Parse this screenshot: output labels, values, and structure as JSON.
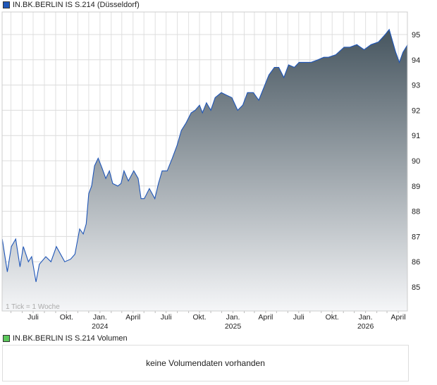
{
  "price_legend": {
    "label": "IN.BK.BERLIN IS S.214 (Düsseldorf)",
    "color": "#1f56b8"
  },
  "volume_legend": {
    "label": "IN.BK.BERLIN IS S.214 Volumen",
    "color": "#5cc85c"
  },
  "tick_note": "1 Tick = 1 Woche",
  "volume_message": "keine Volumendaten vorhanden",
  "chart_data": {
    "type": "area",
    "ylim": [
      84.1,
      95.9
    ],
    "y_ticks": [
      85,
      86,
      87,
      88,
      89,
      90,
      91,
      92,
      93,
      94,
      95
    ],
    "x_ticks": [
      {
        "date": "2023-07-01",
        "label": "Juli",
        "year": ""
      },
      {
        "date": "2023-10-01",
        "label": "Okt.",
        "year": ""
      },
      {
        "date": "2024-01-01",
        "label": "Jan.",
        "year": "2024"
      },
      {
        "date": "2024-04-01",
        "label": "April",
        "year": ""
      },
      {
        "date": "2024-07-01",
        "label": "Juli",
        "year": ""
      },
      {
        "date": "2024-10-01",
        "label": "Okt.",
        "year": ""
      },
      {
        "date": "2025-01-01",
        "label": "Jan.",
        "year": "2025"
      },
      {
        "date": "2025-04-01",
        "label": "April",
        "year": ""
      },
      {
        "date": "2025-07-01",
        "label": "Juli",
        "year": ""
      },
      {
        "date": "2025-10-01",
        "label": "Okt.",
        "year": ""
      },
      {
        "date": "2026-01-01",
        "label": "Jan.",
        "year": "2026"
      },
      {
        "date": "2026-04-01",
        "label": "April",
        "year": ""
      }
    ],
    "grid": true,
    "line_color": "#1f56b8",
    "fill_top_color": "#46555f",
    "fill_bottom_color": "#f5f6f8",
    "points": [
      [
        "2023-04-07",
        86.9
      ],
      [
        "2023-04-21",
        85.6
      ],
      [
        "2023-05-02",
        86.6
      ],
      [
        "2023-05-14",
        86.9
      ],
      [
        "2023-05-26",
        85.8
      ],
      [
        "2023-06-04",
        86.6
      ],
      [
        "2023-06-18",
        86.0
      ],
      [
        "2023-06-27",
        86.2
      ],
      [
        "2023-07-09",
        85.2
      ],
      [
        "2023-07-18",
        85.9
      ],
      [
        "2023-08-05",
        86.2
      ],
      [
        "2023-08-19",
        86.0
      ],
      [
        "2023-09-03",
        86.6
      ],
      [
        "2023-09-26",
        86.0
      ],
      [
        "2023-10-12",
        86.1
      ],
      [
        "2023-10-24",
        86.3
      ],
      [
        "2023-11-06",
        87.3
      ],
      [
        "2023-11-16",
        87.1
      ],
      [
        "2023-11-24",
        87.5
      ],
      [
        "2023-12-01",
        88.7
      ],
      [
        "2023-12-09",
        89.0
      ],
      [
        "2023-12-17",
        89.8
      ],
      [
        "2023-12-27",
        90.1
      ],
      [
        "2024-01-07",
        89.7
      ],
      [
        "2024-01-17",
        89.3
      ],
      [
        "2024-01-27",
        89.6
      ],
      [
        "2024-02-05",
        89.1
      ],
      [
        "2024-02-19",
        89.0
      ],
      [
        "2024-02-28",
        89.1
      ],
      [
        "2024-03-07",
        89.6
      ],
      [
        "2024-03-19",
        89.2
      ],
      [
        "2024-04-03",
        89.6
      ],
      [
        "2024-04-15",
        89.3
      ],
      [
        "2024-04-23",
        88.5
      ],
      [
        "2024-05-02",
        88.5
      ],
      [
        "2024-05-16",
        88.9
      ],
      [
        "2024-05-31",
        88.5
      ],
      [
        "2024-06-10",
        89.1
      ],
      [
        "2024-06-20",
        89.6
      ],
      [
        "2024-07-04",
        89.6
      ],
      [
        "2024-07-18",
        90.1
      ],
      [
        "2024-07-31",
        90.6
      ],
      [
        "2024-08-12",
        91.2
      ],
      [
        "2024-08-25",
        91.5
      ],
      [
        "2024-09-08",
        91.9
      ],
      [
        "2024-09-19",
        92.0
      ],
      [
        "2024-10-01",
        92.2
      ],
      [
        "2024-10-09",
        91.9
      ],
      [
        "2024-10-20",
        92.3
      ],
      [
        "2024-11-01",
        92.0
      ],
      [
        "2024-11-13",
        92.5
      ],
      [
        "2024-11-30",
        92.7
      ],
      [
        "2024-12-14",
        92.6
      ],
      [
        "2024-12-29",
        92.5
      ],
      [
        "2025-01-14",
        92.0
      ],
      [
        "2025-01-28",
        92.2
      ],
      [
        "2025-02-10",
        92.7
      ],
      [
        "2025-02-26",
        92.7
      ],
      [
        "2025-03-13",
        92.4
      ],
      [
        "2025-03-27",
        92.9
      ],
      [
        "2025-04-10",
        93.4
      ],
      [
        "2025-04-25",
        93.7
      ],
      [
        "2025-05-07",
        93.7
      ],
      [
        "2025-05-21",
        93.3
      ],
      [
        "2025-06-03",
        93.8
      ],
      [
        "2025-06-19",
        93.7
      ],
      [
        "2025-07-02",
        93.9
      ],
      [
        "2025-07-16",
        93.9
      ],
      [
        "2025-08-04",
        93.9
      ],
      [
        "2025-08-23",
        94.0
      ],
      [
        "2025-09-08",
        94.1
      ],
      [
        "2025-09-21",
        94.1
      ],
      [
        "2025-10-11",
        94.2
      ],
      [
        "2025-11-03",
        94.5
      ],
      [
        "2025-11-19",
        94.5
      ],
      [
        "2025-12-08",
        94.6
      ],
      [
        "2025-12-28",
        94.4
      ],
      [
        "2026-01-16",
        94.6
      ],
      [
        "2026-02-05",
        94.7
      ],
      [
        "2026-02-24",
        95.0
      ],
      [
        "2026-03-07",
        95.2
      ],
      [
        "2026-03-25",
        94.3
      ],
      [
        "2026-04-04",
        93.9
      ],
      [
        "2026-04-14",
        94.3
      ],
      [
        "2026-04-27",
        94.6
      ]
    ]
  }
}
